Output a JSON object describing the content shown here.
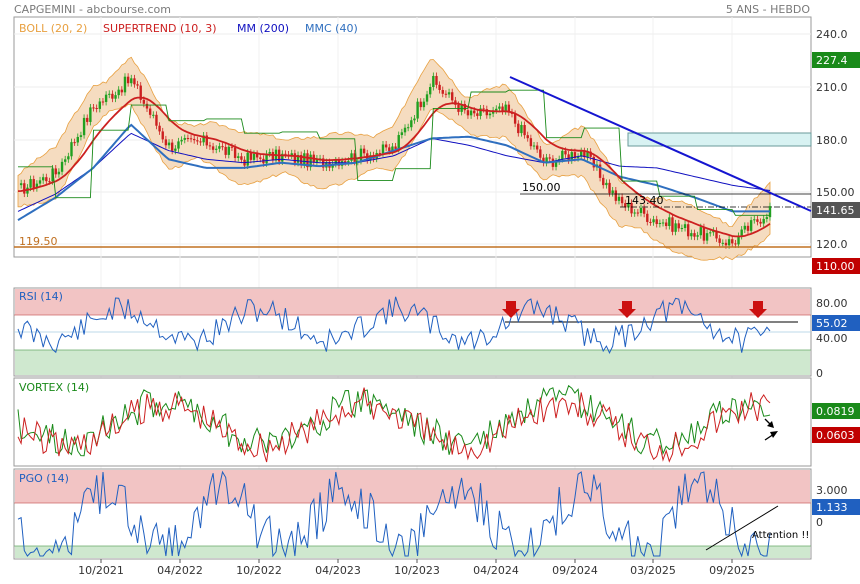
{
  "header": {
    "left": "CAPGEMINI - abcbourse.com",
    "right": "5 ANS - HEBDO"
  },
  "colors": {
    "boll": "#e8a040",
    "supertrend": "#cc2020",
    "mm": "#1010c0",
    "mmc": "#2f6fbf",
    "candle_up": "#20a020",
    "candle_down": "#cc2020",
    "support": "#c07020",
    "trend": "#1515d0",
    "zone_red": "#f2c4c4",
    "zone_green": "#cfe8cf",
    "zone_cyan": "#d8f2f2",
    "price_badge": "#555555",
    "last_badge": "#1a8a1a",
    "low_badge": "#c00000",
    "rsi": "#2060c0",
    "pgo": "#2060c0",
    "vortex_plus": "#1a8a1a",
    "vortex_minus": "#cc2020"
  },
  "price_panel": {
    "legend": [
      {
        "label": "BOLL (20, 2)",
        "color": "#e8a040"
      },
      {
        "label": "SUPERTREND (10, 3)",
        "color": "#cc2020"
      },
      {
        "label": "MM (200)",
        "color": "#1010c0"
      },
      {
        "label": "MMC (40)",
        "color": "#2f6fbf"
      }
    ],
    "yticks": [
      "240.0",
      "210.0",
      "180.0",
      "150.00",
      "120.0"
    ],
    "badges": {
      "high": "227.4",
      "last": "141.65",
      "low": "110.00"
    },
    "labels": {
      "resistance": "150.00",
      "pivot": "143.40",
      "support": "119.50"
    }
  },
  "rsi_panel": {
    "legend": "RSI (14)",
    "yticks": [
      "80.00",
      "40.00",
      "0"
    ],
    "badge": "55.02"
  },
  "vortex_panel": {
    "legend": "VORTEX (14)",
    "badges": {
      "plus": "0.0819",
      "minus": "0.0603"
    }
  },
  "pgo_panel": {
    "legend": "PGO (14)",
    "yticks": [
      "3.000",
      "0"
    ],
    "badge": "1.133",
    "annotation": "Attention !!"
  },
  "xaxis": {
    "ticks": [
      "10/2021",
      "04/2022",
      "10/2022",
      "04/2023",
      "10/2023",
      "04/2024",
      "09/2024",
      "03/2025",
      "09/2025"
    ]
  },
  "chart_data": [
    {
      "type": "line",
      "name": "price",
      "ylim": [
        105,
        245
      ],
      "x": [
        "2021-04",
        "2021-07",
        "2021-10",
        "2022-01",
        "2022-04",
        "2022-07",
        "2022-10",
        "2023-01",
        "2023-04",
        "2023-07",
        "2023-10",
        "2024-01",
        "2024-04",
        "2024-07",
        "2024-09",
        "2024-12",
        "2025-02",
        "2025-04",
        "2025-06",
        "2025-08",
        "2025-10"
      ],
      "close": [
        152,
        162,
        200,
        216,
        178,
        180,
        170,
        172,
        168,
        172,
        176,
        215,
        195,
        198,
        168,
        175,
        145,
        135,
        128,
        122,
        141.65
      ],
      "sma200": [
        140,
        150,
        165,
        185,
        175,
        170,
        168,
        170,
        168,
        168,
        172,
        182,
        178,
        172,
        168,
        172,
        166,
        165,
        160,
        155,
        152
      ],
      "ma40": [
        135,
        148,
        165,
        190,
        170,
        165,
        165,
        168,
        166,
        168,
        175,
        182,
        183,
        178,
        168,
        170,
        160,
        155,
        148,
        140,
        140
      ]
    },
    {
      "type": "line",
      "name": "RSI (14)",
      "ylim": [
        0,
        100
      ],
      "last": 55.02
    },
    {
      "type": "line",
      "name": "VORTEX (14)",
      "last_plus": 0.0819,
      "last_minus": 0.0603
    },
    {
      "type": "line",
      "name": "PGO (14)",
      "last": 1.133
    }
  ]
}
